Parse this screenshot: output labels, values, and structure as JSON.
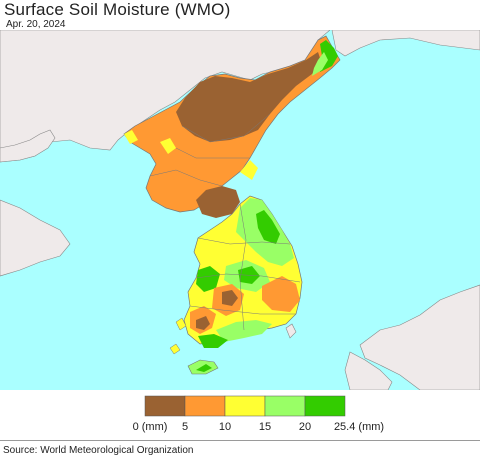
{
  "title": "Surface Soil Moisture (WMO)",
  "date": "Apr. 20, 2024",
  "legend": {
    "unit_label_left": "0 (mm)",
    "unit_label_right": "25.4 (mm)",
    "ticks": [
      "5",
      "10",
      "15",
      "20"
    ],
    "colors": [
      "#9a6232",
      "#ff9933",
      "#ffff33",
      "#99ff66",
      "#33cc00"
    ]
  },
  "colors": {
    "sea": "#aaffff",
    "land_outside": "#efeaea",
    "border": "#666666"
  },
  "source": "Source: World Meteorological Organization"
}
